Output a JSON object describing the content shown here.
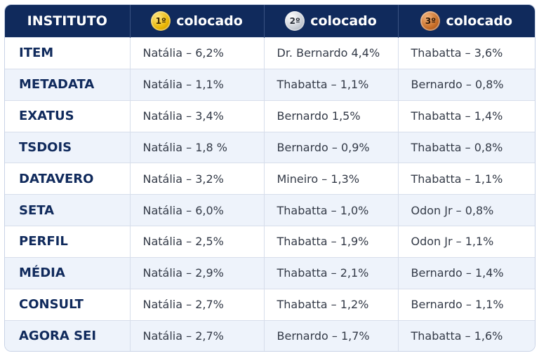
{
  "header": {
    "institute": "INSTITUTO",
    "places": [
      {
        "badge": "1º",
        "label": "colocado",
        "color": "#e8b400"
      },
      {
        "badge": "2º",
        "label": "colocado",
        "color": "#c7ccd4"
      },
      {
        "badge": "3º",
        "label": "colocado",
        "color": "#c46a24"
      }
    ]
  },
  "rows": [
    {
      "institute": "ITEM",
      "first": "Natália – 6,2%",
      "second": "Dr. Bernardo 4,4%",
      "third": "Thabatta – 3,6%"
    },
    {
      "institute": "METADATA",
      "first": "Natália – 1,1%",
      "second": "Thabatta – 1,1%",
      "third": "Bernardo – 0,8%"
    },
    {
      "institute": "EXATUS",
      "first": "Natália – 3,4%",
      "second": "Bernardo 1,5%",
      "third": "Thabatta – 1,4%"
    },
    {
      "institute": "TSDOIS",
      "first": "Natália – 1,8 %",
      "second": "Bernardo – 0,9%",
      "third": "Thabatta – 0,8%"
    },
    {
      "institute": "DATAVERO",
      "first": "Natália – 3,2%",
      "second": "Mineiro – 1,3%",
      "third": "Thabatta – 1,1%"
    },
    {
      "institute": "SETA",
      "first": "Natália – 6,0%",
      "second": "Thabatta – 1,0%",
      "third": "Odon Jr – 0,8%"
    },
    {
      "institute": "PERFIL",
      "first": "Natália – 2,5%",
      "second": "Thabatta – 1,9%",
      "third": "Odon Jr – 1,1%"
    },
    {
      "institute": "MÉDIA",
      "first": "Natália – 2,9%",
      "second": "Thabatta – 2,1%",
      "third": "Bernardo – 1,4%"
    },
    {
      "institute": "CONSULT",
      "first": "Natália – 2,7%",
      "second": "Thabatta – 1,2%",
      "third": "Bernardo – 1,1%"
    },
    {
      "institute": "AGORA SEI",
      "first": "Natália – 2,7%",
      "second": "Bernardo – 1,7%",
      "third": "Thabatta – 1,6%"
    }
  ]
}
